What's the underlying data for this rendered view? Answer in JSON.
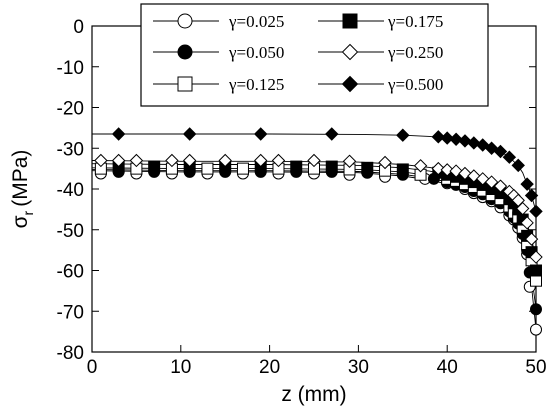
{
  "chart_data": {
    "type": "line",
    "xlabel": "z (mm)",
    "ylabel": "σ",
    "ylabel_sub": "r",
    "ylabel_unit": "(MPa)",
    "xlim": [
      0,
      50
    ],
    "ylim": [
      -80,
      0
    ],
    "xticks": [
      "0",
      "10",
      "20",
      "30",
      "40",
      "50"
    ],
    "yticks": [
      "0",
      "-10",
      "-20",
      "-30",
      "-40",
      "-50",
      "-60",
      "-70",
      "-80"
    ],
    "grid": false,
    "legend_position": "top-right",
    "series": [
      {
        "name": "γ=0.025",
        "marker": "circle-open",
        "line": [
          [
            0,
            -35.5
          ],
          [
            10,
            -35.8
          ],
          [
            20,
            -35.8
          ],
          [
            30,
            -36
          ],
          [
            35,
            -36.8
          ],
          [
            38,
            -37.8
          ],
          [
            40,
            -38.8
          ],
          [
            42,
            -40.2
          ],
          [
            44,
            -42
          ],
          [
            46,
            -44.5
          ],
          [
            47,
            -46.5
          ],
          [
            48,
            -49.5
          ],
          [
            48.5,
            -52
          ],
          [
            49,
            -56
          ],
          [
            49.5,
            -64
          ],
          [
            50,
            -74.5
          ]
        ],
        "points": [
          [
            1,
            -36.2
          ],
          [
            5,
            -36.2
          ],
          [
            9,
            -36.2
          ],
          [
            13,
            -36.2
          ],
          [
            17,
            -36.2
          ],
          [
            21,
            -36.2
          ],
          [
            25,
            -36.2
          ],
          [
            29,
            -36.5
          ],
          [
            33,
            -37
          ],
          [
            37.5,
            -37.5
          ],
          [
            40,
            -38.6
          ],
          [
            41,
            -39
          ],
          [
            42,
            -40
          ],
          [
            43,
            -41
          ],
          [
            44,
            -42
          ],
          [
            45,
            -43
          ],
          [
            46,
            -44.5
          ],
          [
            47,
            -46.5
          ],
          [
            47.5,
            -47.5
          ],
          [
            48,
            -49.5
          ],
          [
            48.5,
            -52
          ],
          [
            49,
            -56
          ],
          [
            49.3,
            -64
          ],
          [
            50,
            -74.5
          ]
        ]
      },
      {
        "name": "γ=0.050",
        "marker": "circle-filled",
        "line": [
          [
            0,
            -35.2
          ],
          [
            10,
            -35.5
          ],
          [
            20,
            -35.5
          ],
          [
            30,
            -35.7
          ],
          [
            35,
            -36.4
          ],
          [
            38,
            -37.3
          ],
          [
            40,
            -38.3
          ],
          [
            42,
            -39.6
          ],
          [
            44,
            -41.3
          ],
          [
            46,
            -43.8
          ],
          [
            47,
            -45.7
          ],
          [
            48,
            -48.5
          ],
          [
            48.5,
            -51
          ],
          [
            49,
            -55
          ],
          [
            49.5,
            -61
          ],
          [
            50,
            -69.5
          ]
        ],
        "points": [
          [
            3,
            -35.8
          ],
          [
            7,
            -35.8
          ],
          [
            11,
            -35.8
          ],
          [
            15,
            -35.8
          ],
          [
            19,
            -35.8
          ],
          [
            23,
            -35.8
          ],
          [
            27,
            -35.8
          ],
          [
            31,
            -36
          ],
          [
            35,
            -36.5
          ],
          [
            38.5,
            -37.5
          ],
          [
            40,
            -38.3
          ],
          [
            41,
            -38.8
          ],
          [
            42,
            -39.5
          ],
          [
            43,
            -40.5
          ],
          [
            44,
            -41.3
          ],
          [
            45,
            -42.5
          ],
          [
            46,
            -43.5
          ],
          [
            47,
            -45.5
          ],
          [
            47.5,
            -47
          ],
          [
            48,
            -48.5
          ],
          [
            48.5,
            -51
          ],
          [
            49,
            -55
          ],
          [
            49.3,
            -60.5
          ],
          [
            50,
            -69.5
          ]
        ]
      },
      {
        "name": "γ=0.125",
        "marker": "square-open",
        "line": [
          [
            0,
            -34.8
          ],
          [
            10,
            -35
          ],
          [
            20,
            -35
          ],
          [
            30,
            -35.2
          ],
          [
            35,
            -35.8
          ],
          [
            38,
            -36.7
          ],
          [
            40,
            -37.6
          ],
          [
            42,
            -38.8
          ],
          [
            44,
            -40.4
          ],
          [
            46,
            -42.6
          ],
          [
            47,
            -44.4
          ],
          [
            48,
            -47
          ],
          [
            48.5,
            -49.5
          ],
          [
            49,
            -53.5
          ],
          [
            49.5,
            -57.5
          ],
          [
            50,
            -62.5
          ]
        ],
        "points": [
          [
            1,
            -35
          ],
          [
            5,
            -35
          ],
          [
            9,
            -35
          ],
          [
            13,
            -35
          ],
          [
            17,
            -35
          ],
          [
            21,
            -35
          ],
          [
            25,
            -35
          ],
          [
            29,
            -35.2
          ],
          [
            33,
            -35.5
          ],
          [
            37,
            -36.5
          ],
          [
            40,
            -37.5
          ],
          [
            41,
            -38
          ],
          [
            42,
            -38.8
          ],
          [
            43,
            -39.5
          ],
          [
            44,
            -40.4
          ],
          [
            45,
            -41.5
          ],
          [
            46,
            -42.5
          ],
          [
            47,
            -44.3
          ],
          [
            47.5,
            -45.8
          ],
          [
            48,
            -47
          ],
          [
            48.5,
            -49.5
          ],
          [
            49,
            -53.5
          ],
          [
            49.5,
            -57.5
          ],
          [
            50,
            -62.5
          ]
        ]
      },
      {
        "name": "γ=0.175",
        "marker": "square-filled",
        "line": [
          [
            0,
            -33.8
          ],
          [
            10,
            -34
          ],
          [
            20,
            -34
          ],
          [
            30,
            -34.2
          ],
          [
            35,
            -34.8
          ],
          [
            38,
            -35.6
          ],
          [
            40,
            -36.5
          ],
          [
            42,
            -37.5
          ],
          [
            44,
            -39
          ],
          [
            46,
            -41
          ],
          [
            47,
            -42.5
          ],
          [
            48,
            -45
          ],
          [
            48.5,
            -47.5
          ],
          [
            49,
            -51.5
          ],
          [
            49.5,
            -55.5
          ],
          [
            50,
            -60
          ]
        ],
        "points": [
          [
            3,
            -34.5
          ],
          [
            7,
            -34.5
          ],
          [
            11,
            -34.5
          ],
          [
            15,
            -34.5
          ],
          [
            19,
            -34.5
          ],
          [
            23,
            -34.5
          ],
          [
            27,
            -34.5
          ],
          [
            31,
            -34.8
          ],
          [
            35,
            -35.2
          ],
          [
            39,
            -36
          ],
          [
            40,
            -36.5
          ],
          [
            41,
            -37
          ],
          [
            42,
            -37.5
          ],
          [
            43,
            -38.3
          ],
          [
            44,
            -39
          ],
          [
            45,
            -40
          ],
          [
            46,
            -41
          ],
          [
            47,
            -42.5
          ],
          [
            47.5,
            -43.5
          ],
          [
            48,
            -45
          ],
          [
            48.5,
            -47.5
          ],
          [
            49,
            -51.5
          ],
          [
            49.5,
            -55.5
          ],
          [
            50,
            -60
          ]
        ]
      },
      {
        "name": "γ=0.250",
        "marker": "diamond-open",
        "line": [
          [
            0,
            -33
          ],
          [
            10,
            -33.2
          ],
          [
            20,
            -33.2
          ],
          [
            30,
            -33.4
          ],
          [
            35,
            -34
          ],
          [
            38,
            -34.7
          ],
          [
            40,
            -35.4
          ],
          [
            42,
            -36.3
          ],
          [
            44,
            -37.6
          ],
          [
            46,
            -39.4
          ],
          [
            47,
            -40.8
          ],
          [
            48,
            -42.8
          ],
          [
            48.5,
            -44.8
          ],
          [
            49,
            -48.5
          ],
          [
            49.5,
            -52.5
          ],
          [
            50,
            -57
          ]
        ],
        "points": [
          [
            1,
            -33
          ],
          [
            3,
            -33
          ],
          [
            5,
            -33
          ],
          [
            9,
            -33
          ],
          [
            11,
            -33
          ],
          [
            15,
            -33
          ],
          [
            19,
            -33
          ],
          [
            21,
            -33
          ],
          [
            25,
            -33
          ],
          [
            29,
            -33.2
          ],
          [
            33,
            -33.5
          ],
          [
            37,
            -34.3
          ],
          [
            39,
            -35
          ],
          [
            40,
            -35.3
          ],
          [
            41,
            -35.6
          ],
          [
            42,
            -36.2
          ],
          [
            43,
            -36.8
          ],
          [
            44,
            -37.5
          ],
          [
            45,
            -38.3
          ],
          [
            46,
            -39.3
          ],
          [
            47,
            -40.6
          ],
          [
            47.5,
            -41.6
          ],
          [
            48,
            -42.8
          ],
          [
            48.5,
            -44.8
          ],
          [
            49,
            -48.3
          ],
          [
            49.5,
            -52.3
          ],
          [
            50,
            -56.7
          ]
        ]
      },
      {
        "name": "γ=0.500",
        "marker": "diamond-filled",
        "line": [
          [
            0,
            -26.5
          ],
          [
            10,
            -26.5
          ],
          [
            20,
            -26.5
          ],
          [
            30,
            -26.6
          ],
          [
            35,
            -26.8
          ],
          [
            38,
            -27.1
          ],
          [
            40,
            -27.5
          ],
          [
            42,
            -28.1
          ],
          [
            44,
            -29.2
          ],
          [
            46,
            -30.8
          ],
          [
            47,
            -32.2
          ],
          [
            48,
            -34.3
          ],
          [
            48.5,
            -36
          ],
          [
            49,
            -38.8
          ],
          [
            49.5,
            -41.7
          ],
          [
            50,
            -45.5
          ]
        ],
        "points": [
          [
            3,
            -26.5
          ],
          [
            11,
            -26.5
          ],
          [
            19,
            -26.5
          ],
          [
            27,
            -26.5
          ],
          [
            35,
            -26.8
          ],
          [
            39,
            -27.2
          ],
          [
            40,
            -27.5
          ],
          [
            41,
            -27.8
          ],
          [
            42,
            -28.2
          ],
          [
            43,
            -28.7
          ],
          [
            44,
            -29.2
          ],
          [
            45,
            -30
          ],
          [
            46,
            -30.8
          ],
          [
            47,
            -32.2
          ],
          [
            48,
            -34.2
          ],
          [
            49,
            -38.8
          ],
          [
            49.5,
            -41.6
          ],
          [
            50,
            -45.5
          ]
        ]
      }
    ]
  }
}
